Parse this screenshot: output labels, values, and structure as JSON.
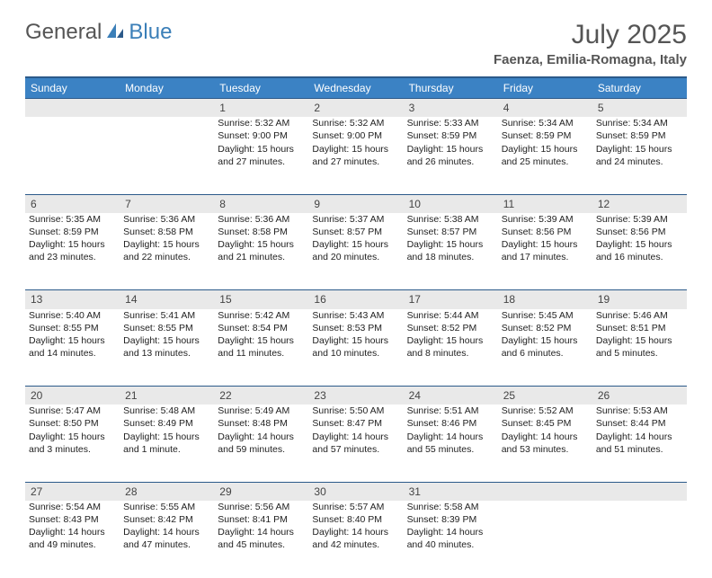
{
  "brand": {
    "text1": "General",
    "text2": "Blue",
    "color1": "#555555",
    "color2": "#3b7fb8"
  },
  "title": "July 2025",
  "location": "Faenza, Emilia-Romagna, Italy",
  "colors": {
    "header_bg": "#3b82c4",
    "header_border": "#2c5a8a",
    "daynum_bg": "#e9e9e9",
    "text": "#222222"
  },
  "weekdays": [
    "Sunday",
    "Monday",
    "Tuesday",
    "Wednesday",
    "Thursday",
    "Friday",
    "Saturday"
  ],
  "weeks": [
    {
      "nums": [
        "",
        "",
        "1",
        "2",
        "3",
        "4",
        "5"
      ],
      "cells": [
        null,
        null,
        {
          "sunrise": "Sunrise: 5:32 AM",
          "sunset": "Sunset: 9:00 PM",
          "day1": "Daylight: 15 hours",
          "day2": "and 27 minutes."
        },
        {
          "sunrise": "Sunrise: 5:32 AM",
          "sunset": "Sunset: 9:00 PM",
          "day1": "Daylight: 15 hours",
          "day2": "and 27 minutes."
        },
        {
          "sunrise": "Sunrise: 5:33 AM",
          "sunset": "Sunset: 8:59 PM",
          "day1": "Daylight: 15 hours",
          "day2": "and 26 minutes."
        },
        {
          "sunrise": "Sunrise: 5:34 AM",
          "sunset": "Sunset: 8:59 PM",
          "day1": "Daylight: 15 hours",
          "day2": "and 25 minutes."
        },
        {
          "sunrise": "Sunrise: 5:34 AM",
          "sunset": "Sunset: 8:59 PM",
          "day1": "Daylight: 15 hours",
          "day2": "and 24 minutes."
        }
      ]
    },
    {
      "nums": [
        "6",
        "7",
        "8",
        "9",
        "10",
        "11",
        "12"
      ],
      "cells": [
        {
          "sunrise": "Sunrise: 5:35 AM",
          "sunset": "Sunset: 8:59 PM",
          "day1": "Daylight: 15 hours",
          "day2": "and 23 minutes."
        },
        {
          "sunrise": "Sunrise: 5:36 AM",
          "sunset": "Sunset: 8:58 PM",
          "day1": "Daylight: 15 hours",
          "day2": "and 22 minutes."
        },
        {
          "sunrise": "Sunrise: 5:36 AM",
          "sunset": "Sunset: 8:58 PM",
          "day1": "Daylight: 15 hours",
          "day2": "and 21 minutes."
        },
        {
          "sunrise": "Sunrise: 5:37 AM",
          "sunset": "Sunset: 8:57 PM",
          "day1": "Daylight: 15 hours",
          "day2": "and 20 minutes."
        },
        {
          "sunrise": "Sunrise: 5:38 AM",
          "sunset": "Sunset: 8:57 PM",
          "day1": "Daylight: 15 hours",
          "day2": "and 18 minutes."
        },
        {
          "sunrise": "Sunrise: 5:39 AM",
          "sunset": "Sunset: 8:56 PM",
          "day1": "Daylight: 15 hours",
          "day2": "and 17 minutes."
        },
        {
          "sunrise": "Sunrise: 5:39 AM",
          "sunset": "Sunset: 8:56 PM",
          "day1": "Daylight: 15 hours",
          "day2": "and 16 minutes."
        }
      ]
    },
    {
      "nums": [
        "13",
        "14",
        "15",
        "16",
        "17",
        "18",
        "19"
      ],
      "cells": [
        {
          "sunrise": "Sunrise: 5:40 AM",
          "sunset": "Sunset: 8:55 PM",
          "day1": "Daylight: 15 hours",
          "day2": "and 14 minutes."
        },
        {
          "sunrise": "Sunrise: 5:41 AM",
          "sunset": "Sunset: 8:55 PM",
          "day1": "Daylight: 15 hours",
          "day2": "and 13 minutes."
        },
        {
          "sunrise": "Sunrise: 5:42 AM",
          "sunset": "Sunset: 8:54 PM",
          "day1": "Daylight: 15 hours",
          "day2": "and 11 minutes."
        },
        {
          "sunrise": "Sunrise: 5:43 AM",
          "sunset": "Sunset: 8:53 PM",
          "day1": "Daylight: 15 hours",
          "day2": "and 10 minutes."
        },
        {
          "sunrise": "Sunrise: 5:44 AM",
          "sunset": "Sunset: 8:52 PM",
          "day1": "Daylight: 15 hours",
          "day2": "and 8 minutes."
        },
        {
          "sunrise": "Sunrise: 5:45 AM",
          "sunset": "Sunset: 8:52 PM",
          "day1": "Daylight: 15 hours",
          "day2": "and 6 minutes."
        },
        {
          "sunrise": "Sunrise: 5:46 AM",
          "sunset": "Sunset: 8:51 PM",
          "day1": "Daylight: 15 hours",
          "day2": "and 5 minutes."
        }
      ]
    },
    {
      "nums": [
        "20",
        "21",
        "22",
        "23",
        "24",
        "25",
        "26"
      ],
      "cells": [
        {
          "sunrise": "Sunrise: 5:47 AM",
          "sunset": "Sunset: 8:50 PM",
          "day1": "Daylight: 15 hours",
          "day2": "and 3 minutes."
        },
        {
          "sunrise": "Sunrise: 5:48 AM",
          "sunset": "Sunset: 8:49 PM",
          "day1": "Daylight: 15 hours",
          "day2": "and 1 minute."
        },
        {
          "sunrise": "Sunrise: 5:49 AM",
          "sunset": "Sunset: 8:48 PM",
          "day1": "Daylight: 14 hours",
          "day2": "and 59 minutes."
        },
        {
          "sunrise": "Sunrise: 5:50 AM",
          "sunset": "Sunset: 8:47 PM",
          "day1": "Daylight: 14 hours",
          "day2": "and 57 minutes."
        },
        {
          "sunrise": "Sunrise: 5:51 AM",
          "sunset": "Sunset: 8:46 PM",
          "day1": "Daylight: 14 hours",
          "day2": "and 55 minutes."
        },
        {
          "sunrise": "Sunrise: 5:52 AM",
          "sunset": "Sunset: 8:45 PM",
          "day1": "Daylight: 14 hours",
          "day2": "and 53 minutes."
        },
        {
          "sunrise": "Sunrise: 5:53 AM",
          "sunset": "Sunset: 8:44 PM",
          "day1": "Daylight: 14 hours",
          "day2": "and 51 minutes."
        }
      ]
    },
    {
      "nums": [
        "27",
        "28",
        "29",
        "30",
        "31",
        "",
        ""
      ],
      "cells": [
        {
          "sunrise": "Sunrise: 5:54 AM",
          "sunset": "Sunset: 8:43 PM",
          "day1": "Daylight: 14 hours",
          "day2": "and 49 minutes."
        },
        {
          "sunrise": "Sunrise: 5:55 AM",
          "sunset": "Sunset: 8:42 PM",
          "day1": "Daylight: 14 hours",
          "day2": "and 47 minutes."
        },
        {
          "sunrise": "Sunrise: 5:56 AM",
          "sunset": "Sunset: 8:41 PM",
          "day1": "Daylight: 14 hours",
          "day2": "and 45 minutes."
        },
        {
          "sunrise": "Sunrise: 5:57 AM",
          "sunset": "Sunset: 8:40 PM",
          "day1": "Daylight: 14 hours",
          "day2": "and 42 minutes."
        },
        {
          "sunrise": "Sunrise: 5:58 AM",
          "sunset": "Sunset: 8:39 PM",
          "day1": "Daylight: 14 hours",
          "day2": "and 40 minutes."
        },
        null,
        null
      ]
    }
  ]
}
